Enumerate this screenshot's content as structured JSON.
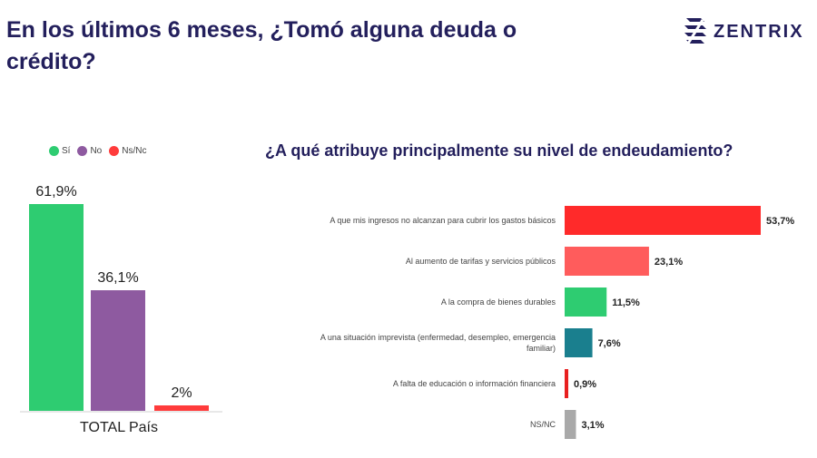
{
  "header": {
    "title": "En los últimos 6 meses, ¿Tomó alguna deuda o crédito?",
    "brand": "ZENTRIX"
  },
  "colors": {
    "navy": "#231f5c",
    "si": "#2ecc71",
    "no": "#8e5aa0",
    "nsnc": "#ff3b3b"
  },
  "chart_data": [
    {
      "type": "bar",
      "title": "",
      "categories": [
        "Sí",
        "No",
        "Ns/Nc"
      ],
      "values": [
        61.9,
        36.1,
        2
      ],
      "value_labels": [
        "61,9%",
        "36,1%",
        "2%"
      ],
      "xlabel": "TOTAL País",
      "legend": [
        "Sí",
        "No",
        "Ns/Nc"
      ],
      "legend_position": "top",
      "colors": [
        "#2ecc71",
        "#8e5aa0",
        "#ff3b3b"
      ],
      "ylim": [
        0,
        70
      ]
    },
    {
      "type": "bar",
      "orientation": "horizontal",
      "title": "¿A qué atribuye principalmente su nivel de endeudamiento?",
      "categories": [
        "A que mis ingresos no alcanzan para cubrir los gastos básicos",
        "Al aumento de tarifas y servicios públicos",
        "A la compra de bienes durables",
        "A una situación imprevista (enfermedad, desempleo, emergencia familiar)",
        "A falta de educación o información financiera",
        "NS/NC"
      ],
      "values": [
        53.7,
        23.1,
        11.5,
        7.6,
        0.9,
        3.1
      ],
      "value_labels": [
        "53,7%",
        "23,1%",
        "11,5%",
        "7,6%",
        "0,9%",
        "3,1%"
      ],
      "colors": [
        "#ff2a2a",
        "#ff5c5c",
        "#2ecc71",
        "#1a7f8e",
        "#e82020",
        "#a9a9a9"
      ],
      "xlim": [
        0,
        60
      ]
    }
  ]
}
